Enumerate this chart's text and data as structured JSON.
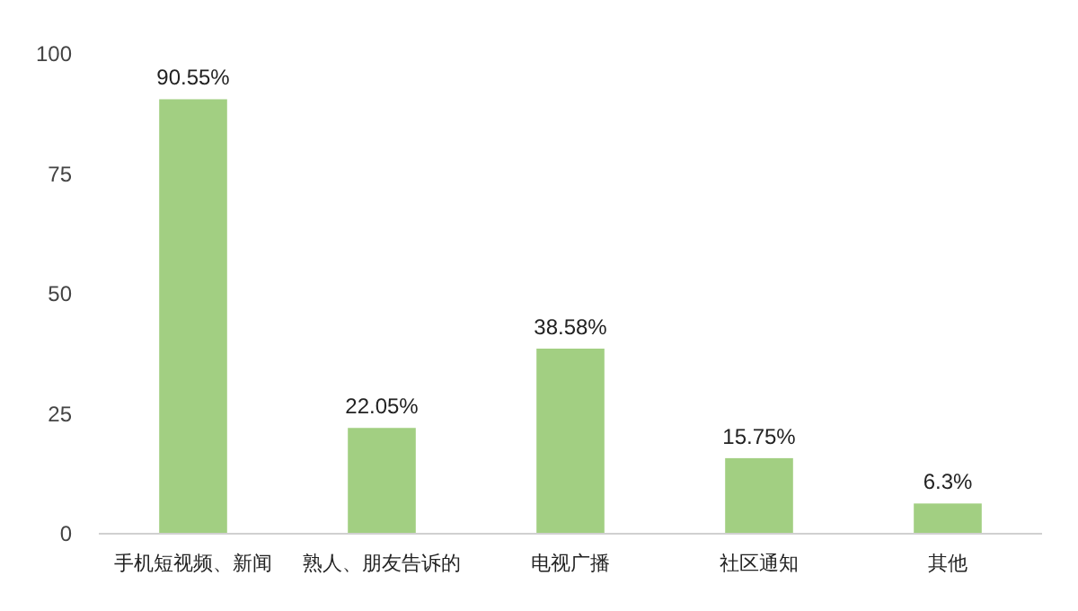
{
  "chart_data": {
    "type": "bar",
    "categories": [
      "手机短视频、新闻",
      "熟人、朋友告诉的",
      "电视广播",
      "社区通知",
      "其他"
    ],
    "values": [
      90.55,
      22.05,
      38.58,
      15.75,
      6.3
    ],
    "value_labels": [
      "90.55%",
      "22.05%",
      "38.58%",
      "15.75%",
      "6.3%"
    ],
    "color": "#a2cf82",
    "ylim": [
      0,
      100
    ],
    "yticks": [
      0,
      25,
      50,
      75,
      100
    ],
    "grid": false
  }
}
